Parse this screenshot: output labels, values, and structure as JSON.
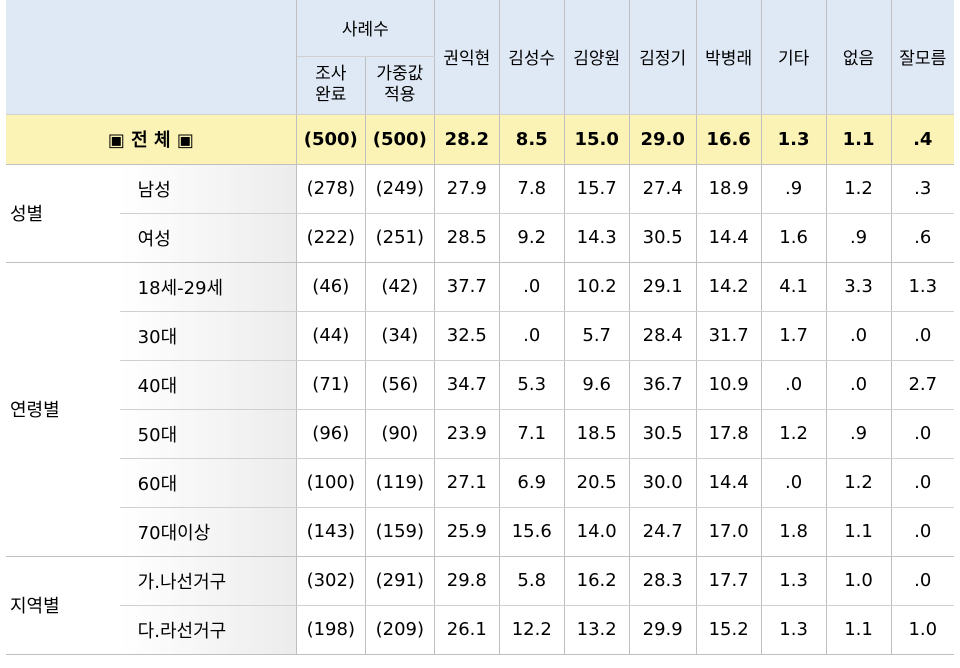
{
  "header": {
    "sample_group": "사례수",
    "sample_done": [
      "조사",
      "완료"
    ],
    "sample_weighted": [
      "가중값",
      "적용"
    ],
    "candidates": [
      "권익현",
      "김성수",
      "김양원",
      "김정기",
      "박병래",
      "기타",
      "없음",
      "잘모름"
    ]
  },
  "total": {
    "label": "▣ 전   체 ▣",
    "n": "(500)",
    "w": "(500)",
    "values": [
      "28.2",
      "8.5",
      "15.0",
      "29.0",
      "16.6",
      "1.3",
      "1.1",
      ".4"
    ]
  },
  "groups": [
    {
      "name": "성별",
      "rows": [
        {
          "label": "남성",
          "n": "(278)",
          "w": "(249)",
          "values": [
            "27.9",
            "7.8",
            "15.7",
            "27.4",
            "18.9",
            ".9",
            "1.2",
            ".3"
          ]
        },
        {
          "label": "여성",
          "n": "(222)",
          "w": "(251)",
          "values": [
            "28.5",
            "9.2",
            "14.3",
            "30.5",
            "14.4",
            "1.6",
            ".9",
            ".6"
          ]
        }
      ]
    },
    {
      "name": "연령별",
      "rows": [
        {
          "label": "18세-29세",
          "n": "(46)",
          "w": "(42)",
          "values": [
            "37.7",
            ".0",
            "10.2",
            "29.1",
            "14.2",
            "4.1",
            "3.3",
            "1.3"
          ]
        },
        {
          "label": "30대",
          "n": "(44)",
          "w": "(34)",
          "values": [
            "32.5",
            ".0",
            "5.7",
            "28.4",
            "31.7",
            "1.7",
            ".0",
            ".0"
          ]
        },
        {
          "label": "40대",
          "n": "(71)",
          "w": "(56)",
          "values": [
            "34.7",
            "5.3",
            "9.6",
            "36.7",
            "10.9",
            ".0",
            ".0",
            "2.7"
          ]
        },
        {
          "label": "50대",
          "n": "(96)",
          "w": "(90)",
          "values": [
            "23.9",
            "7.1",
            "18.5",
            "30.5",
            "17.8",
            "1.2",
            ".9",
            ".0"
          ]
        },
        {
          "label": "60대",
          "n": "(100)",
          "w": "(119)",
          "values": [
            "27.1",
            "6.9",
            "20.5",
            "30.0",
            "14.4",
            ".0",
            "1.2",
            ".0"
          ]
        },
        {
          "label": "70대이상",
          "n": "(143)",
          "w": "(159)",
          "values": [
            "25.9",
            "15.6",
            "14.0",
            "24.7",
            "17.0",
            "1.8",
            "1.1",
            ".0"
          ]
        }
      ]
    },
    {
      "name": "지역별",
      "rows": [
        {
          "label": "가.나선거구",
          "n": "(302)",
          "w": "(291)",
          "values": [
            "29.8",
            "5.8",
            "16.2",
            "28.3",
            "17.7",
            "1.3",
            "1.0",
            ".0"
          ]
        },
        {
          "label": "다.라선거구",
          "n": "(198)",
          "w": "(209)",
          "values": [
            "26.1",
            "12.2",
            "13.2",
            "29.9",
            "15.2",
            "1.3",
            "1.1",
            "1.0"
          ]
        }
      ]
    }
  ]
}
